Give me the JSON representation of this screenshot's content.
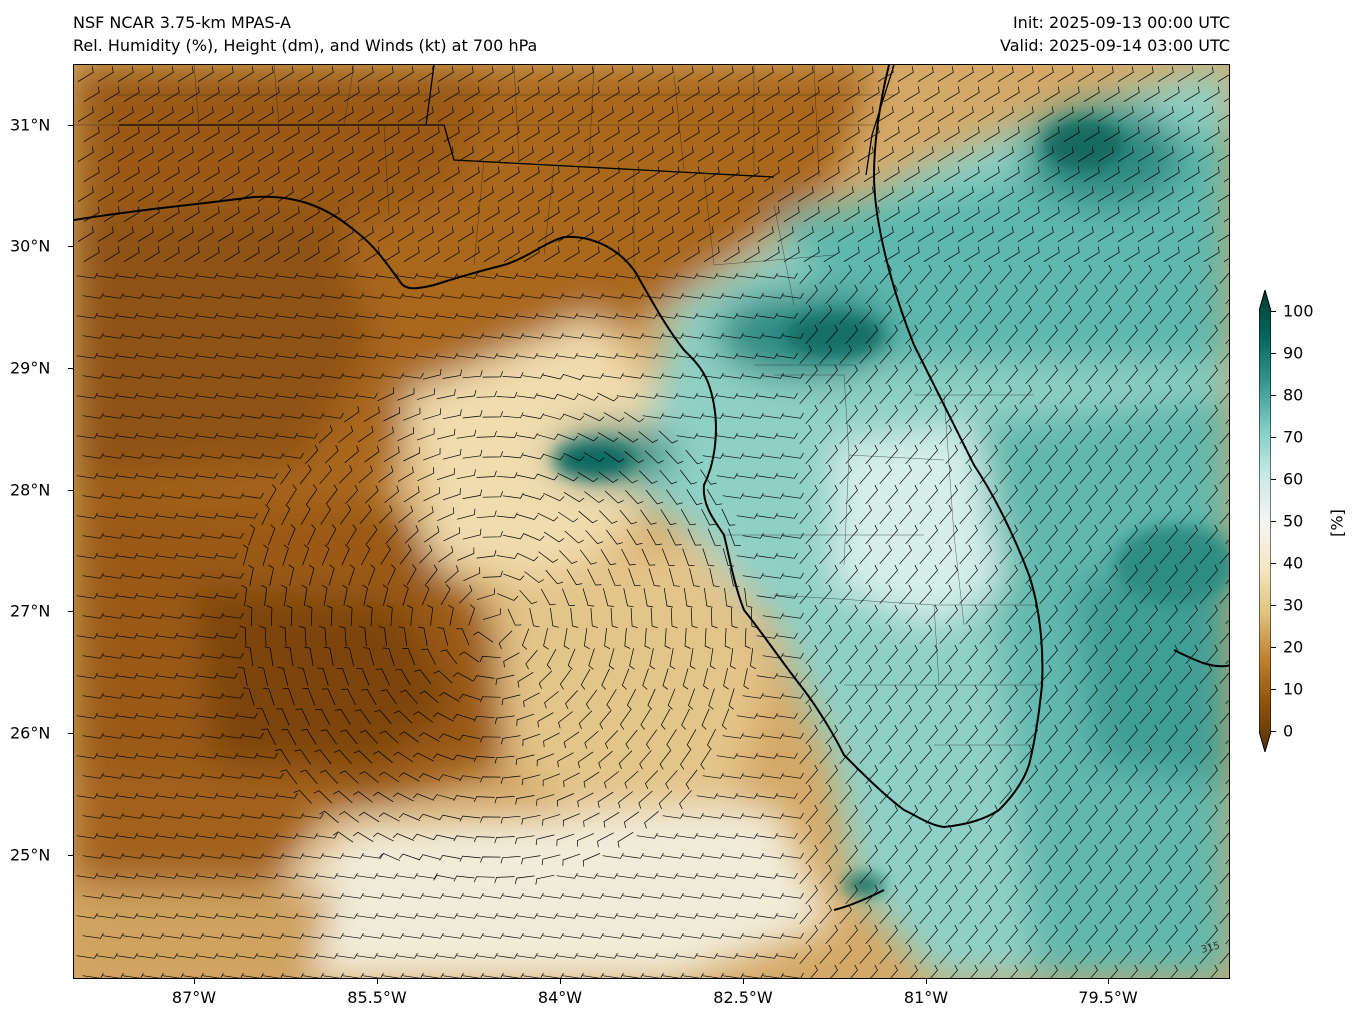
{
  "header": {
    "model": "NSF NCAR 3.75-km MPAS-A",
    "field": "Rel. Humidity (%), Height (dm), and Winds (kt) at 700 hPa",
    "init": "Init: 2025-09-13 00:00 UTC",
    "valid": "Valid: 2025-09-14 03:00 UTC"
  },
  "axes": {
    "latitude_labels": [
      "31°N",
      "30°N",
      "29°N",
      "28°N",
      "27°N",
      "26°N",
      "25°N"
    ],
    "longitude_labels": [
      "87°W",
      "85.5°W",
      "84°W",
      "82.5°W",
      "81°W",
      "79.5°W"
    ]
  },
  "colorbar": {
    "ticks": [
      "0",
      "10",
      "20",
      "30",
      "40",
      "50",
      "60",
      "70",
      "80",
      "90",
      "100"
    ],
    "unit": "[%]",
    "colors": [
      "#543005",
      "#8c510a",
      "#bf812d",
      "#dfc27d",
      "#f6e8c3",
      "#f5f5f5",
      "#c7eae5",
      "#80cdc1",
      "#35978f",
      "#01665e",
      "#003c30"
    ]
  },
  "map": {
    "region": "Florida and eastern Gulf of Mexico",
    "coastline_color": "#000000",
    "contour_label": "315"
  }
}
